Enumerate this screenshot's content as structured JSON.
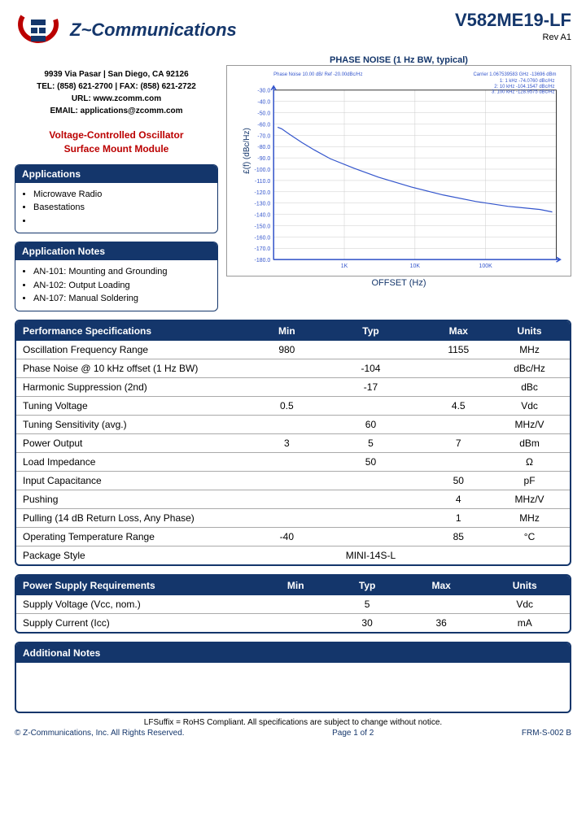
{
  "company": "Z~Communications",
  "part_number": "V582ME19-LF",
  "revision": "Rev  A1",
  "contact": {
    "addr": "9939 Via Pasar | San Diego, CA 92126",
    "tel": "TEL: (858) 621-2700 | FAX: (858) 621-2722",
    "url": "URL: www.zcomm.com",
    "email": "EMAIL: applications@zcomm.com"
  },
  "product_title_1": "Voltage-Controlled Oscillator",
  "product_title_2": "Surface Mount Module",
  "applications": {
    "header": "Applications",
    "items": [
      "Microwave Radio",
      "Basestations",
      ""
    ]
  },
  "app_notes": {
    "header": "Application Notes",
    "items": [
      "AN-101: Mounting and Grounding",
      "AN-102: Output Loading",
      "AN-107: Manual Soldering"
    ]
  },
  "chart": {
    "title": "PHASE NOISE (1 Hz BW, typical)",
    "y_label": "£(f) (dBc/Hz)",
    "x_label": "OFFSET (Hz)",
    "bg_color": "#ffffff",
    "grid_color": "#cccccc",
    "line_color": "#3355cc",
    "axis_color": "#3355cc",
    "y_ticks": [
      "-30.0",
      "-40.0",
      "-50.0",
      "-60.0",
      "-70.0",
      "-80.0",
      "-90.0",
      "-100.0",
      "-110.0",
      "-120.0",
      "-130.0",
      "-140.0",
      "-150.0",
      "-160.0",
      "-170.0",
      "-180.0"
    ],
    "carrier_text": "Carrier 1.067539583 GHz   -13696 dBm",
    "markers": [
      "1:  1 kHz  -74.0760 dBc/Hz",
      "2: 10 kHz -104.1547 dBc/Hz",
      "3: 100 kHz -128.9575 dBc/Hz"
    ],
    "sub_title": "Phase Noise 10.00 dB/ Ref -20.00dBc/Hz",
    "line_points": [
      [
        55,
        76
      ],
      [
        60,
        78
      ],
      [
        70,
        85
      ],
      [
        85,
        95
      ],
      [
        100,
        104
      ],
      [
        120,
        115
      ],
      [
        150,
        127
      ],
      [
        180,
        138
      ],
      [
        220,
        150
      ],
      [
        260,
        160
      ],
      [
        300,
        168
      ],
      [
        340,
        174
      ],
      [
        380,
        178
      ],
      [
        395,
        181
      ]
    ]
  },
  "perf_spec": {
    "header": "Performance Specifications",
    "cols": [
      "Min",
      "Typ",
      "Max",
      "Units"
    ],
    "rows": [
      {
        "p": "Oscillation Frequency Range",
        "min": "980",
        "typ": "",
        "max": "1155",
        "u": "MHz"
      },
      {
        "p": "Phase Noise @ 10 kHz offset (1 Hz BW)",
        "min": "",
        "typ": "-104",
        "max": "",
        "u": "dBc/Hz"
      },
      {
        "p": "Harmonic Suppression (2nd)",
        "min": "",
        "typ": "-17",
        "max": "",
        "u": "dBc"
      },
      {
        "p": "Tuning Voltage",
        "min": "0.5",
        "typ": "",
        "max": "4.5",
        "u": "Vdc"
      },
      {
        "p": "Tuning Sensitivity (avg.)",
        "min": "",
        "typ": "60",
        "max": "",
        "u": "MHz/V"
      },
      {
        "p": "Power Output",
        "min": "3",
        "typ": "5",
        "max": "7",
        "u": "dBm"
      },
      {
        "p": "Load Impedance",
        "min": "",
        "typ": "50",
        "max": "",
        "u": "Ω"
      },
      {
        "p": "Input Capacitance",
        "min": "",
        "typ": "",
        "max": "50",
        "u": "pF"
      },
      {
        "p": "Pushing",
        "min": "",
        "typ": "",
        "max": "4",
        "u": "MHz/V"
      },
      {
        "p": "Pulling (14  dB Return Loss, Any Phase)",
        "min": "",
        "typ": "",
        "max": "1",
        "u": "MHz"
      },
      {
        "p": "Operating Temperature Range",
        "min": "-40",
        "typ": "",
        "max": "85",
        "u": "°C"
      },
      {
        "p": "Package Style",
        "min": "",
        "typ": "MINI-14S-L",
        "max": "",
        "u": ""
      }
    ]
  },
  "power_spec": {
    "header": "Power Supply Requirements",
    "cols": [
      "Min",
      "Typ",
      "Max",
      "Units"
    ],
    "rows": [
      {
        "p": "Supply Voltage (Vcc, nom.)",
        "min": "",
        "typ": "5",
        "max": "",
        "u": "Vdc"
      },
      {
        "p": "Supply Current (Icc)",
        "min": "",
        "typ": "30",
        "max": "36",
        "u": "mA"
      }
    ]
  },
  "notes_header": "Additional Notes",
  "footer_note": "LFSuffix = RoHS Compliant. All specifications are subject to change without notice.",
  "footer_left": "© Z-Communications, Inc. All Rights Reserved.",
  "footer_mid": "Page 1 of 2",
  "footer_right": "FRM-S-002 B"
}
